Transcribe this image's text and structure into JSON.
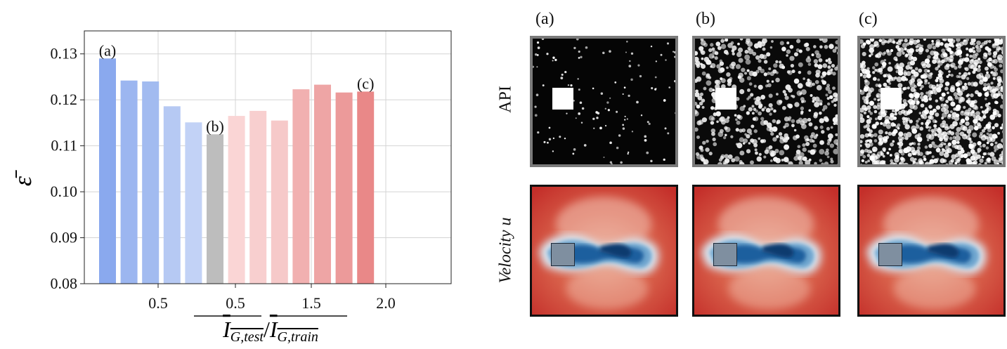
{
  "chart_data": {
    "type": "bar",
    "ylabel": "ε̄",
    "xlabel_main": "I",
    "xlabel_sub_test": "G,test",
    "xlabel_sub_train": "G,train",
    "ylim": [
      0.08,
      0.135
    ],
    "yticks": [
      0.08,
      0.09,
      0.1,
      0.11,
      0.12,
      0.13
    ],
    "ytick_labels": [
      "0.08",
      "0.09",
      "0.10",
      "0.11",
      "0.12",
      "0.13"
    ],
    "xtick_labels": [
      "0.5",
      "0.5",
      "1.5",
      "2.0"
    ],
    "grid": true,
    "values": [
      0.129,
      0.1242,
      0.124,
      0.1186,
      0.1151,
      0.1125,
      0.1165,
      0.1176,
      0.1155,
      0.1223,
      0.1233,
      0.1216,
      0.1218
    ],
    "colors": [
      "#8aa9ee",
      "#9cb6f0",
      "#a2bbf0",
      "#b6c9f3",
      "#c2d2f6",
      "#bdbdbd",
      "#fad5d5",
      "#f8cfcf",
      "#f6c9c9",
      "#f1b0b0",
      "#eea5a5",
      "#ec9a9a",
      "#e98888"
    ],
    "bar_annotations": [
      {
        "index": 0,
        "text": "(a)"
      },
      {
        "index": 5,
        "text": "(b)"
      },
      {
        "index": 12,
        "text": "(c)"
      }
    ]
  },
  "panels": {
    "letters": [
      "(a)",
      "(b)",
      "(c)"
    ],
    "row_labels": {
      "api": "API",
      "velocity": "Velocity u"
    }
  }
}
